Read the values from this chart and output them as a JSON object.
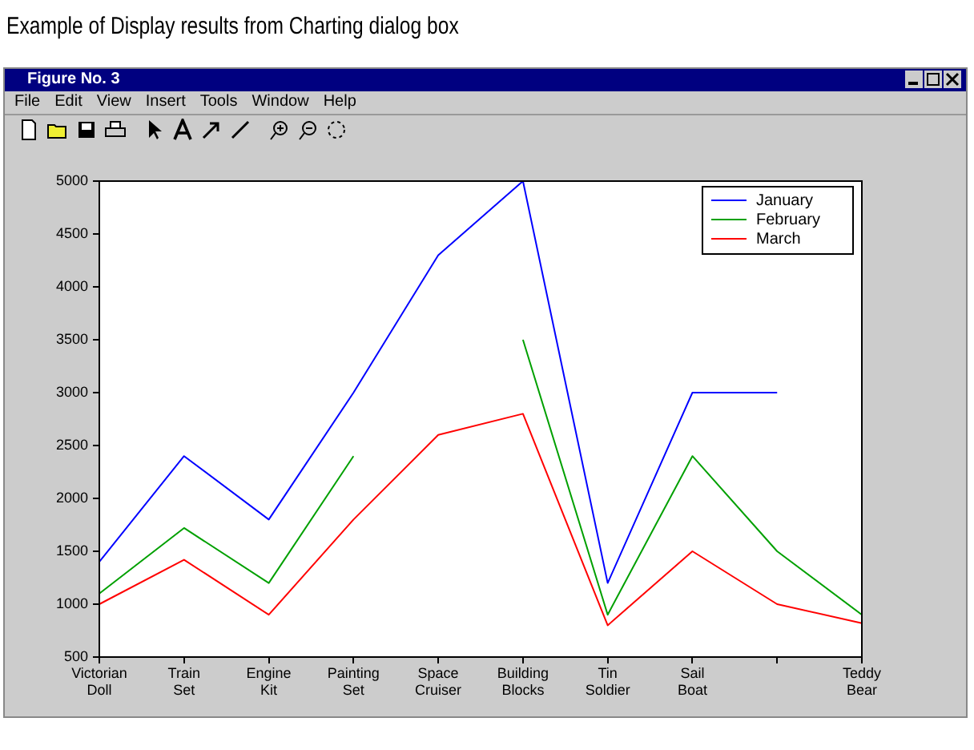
{
  "chart_data": {
    "type": "line",
    "title": "Example of Display results from Charting dialog box",
    "annotations": [
      "Figure No. 3",
      "File",
      "Edit",
      "View",
      "Insert",
      "Tools",
      "Window",
      "Help"
    ],
    "categories": [
      "Victorian Doll",
      "Train Set",
      "Engine Kit",
      "Painting Set",
      "Space Cruiser",
      "Building Blocks",
      "Tin Soldier",
      "Sail Boat",
      null,
      "Teddy Bear"
    ],
    "series": [
      {
        "name": "January",
        "color": "#0000ff",
        "values": [
          1400,
          2400,
          1800,
          3000,
          4300,
          5000,
          1200,
          3000,
          3000,
          null
        ]
      },
      {
        "name": "February",
        "color": "#00a000",
        "values": [
          1100,
          1720,
          1200,
          2400,
          null,
          3500,
          900,
          2400,
          1500,
          900
        ]
      },
      {
        "name": "March",
        "color": "#ff0000",
        "values": [
          1000,
          1420,
          900,
          1800,
          2600,
          2800,
          800,
          1500,
          1000,
          820
        ]
      }
    ],
    "ylim": [
      500,
      5000
    ],
    "yticks": [
      500,
      1000,
      1500,
      2000,
      2500,
      3000,
      3500,
      4000,
      4500,
      5000
    ],
    "grid": false,
    "legend": "top right",
    "marker": "none",
    "line_style": "solid"
  }
}
